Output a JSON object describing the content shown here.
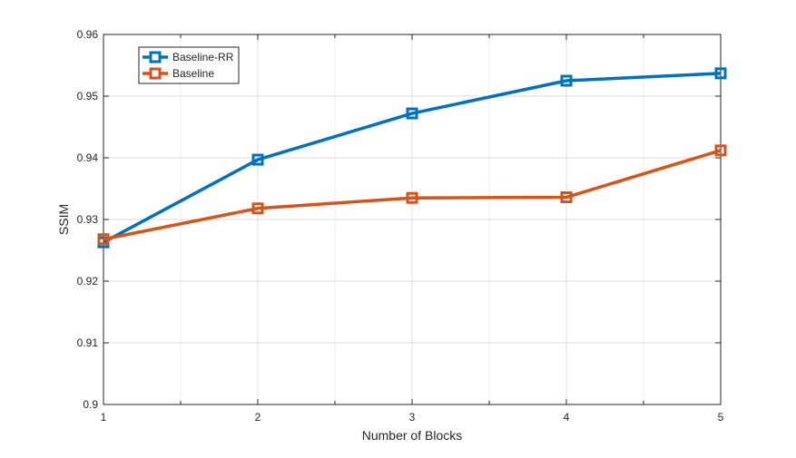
{
  "chart_data": {
    "type": "line",
    "title": "",
    "xlabel": "Number of Blocks",
    "ylabel": "SSIM",
    "x": [
      1,
      2,
      3,
      4,
      5
    ],
    "xlim": [
      1,
      5
    ],
    "ylim": [
      0.9,
      0.96
    ],
    "xticks": [
      1,
      2,
      3,
      4,
      5
    ],
    "yticks": [
      0.9,
      0.91,
      0.92,
      0.93,
      0.94,
      0.95,
      0.96
    ],
    "xtick_labels": [
      "1",
      "2",
      "3",
      "4",
      "5"
    ],
    "ytick_labels": [
      "0.9",
      "0.91",
      "0.92",
      "0.93",
      "0.94",
      "0.95",
      "0.96"
    ],
    "grid": true,
    "legend_position": "top-left",
    "series": [
      {
        "name": "Baseline-RR",
        "color": "#0072BD",
        "marker": "square",
        "values": [
          0.9263,
          0.9397,
          0.9472,
          0.9525,
          0.9537
        ]
      },
      {
        "name": "Baseline",
        "color": "#D95319",
        "marker": "square",
        "values": [
          0.9268,
          0.9318,
          0.9335,
          0.9336,
          0.9412
        ]
      }
    ]
  }
}
